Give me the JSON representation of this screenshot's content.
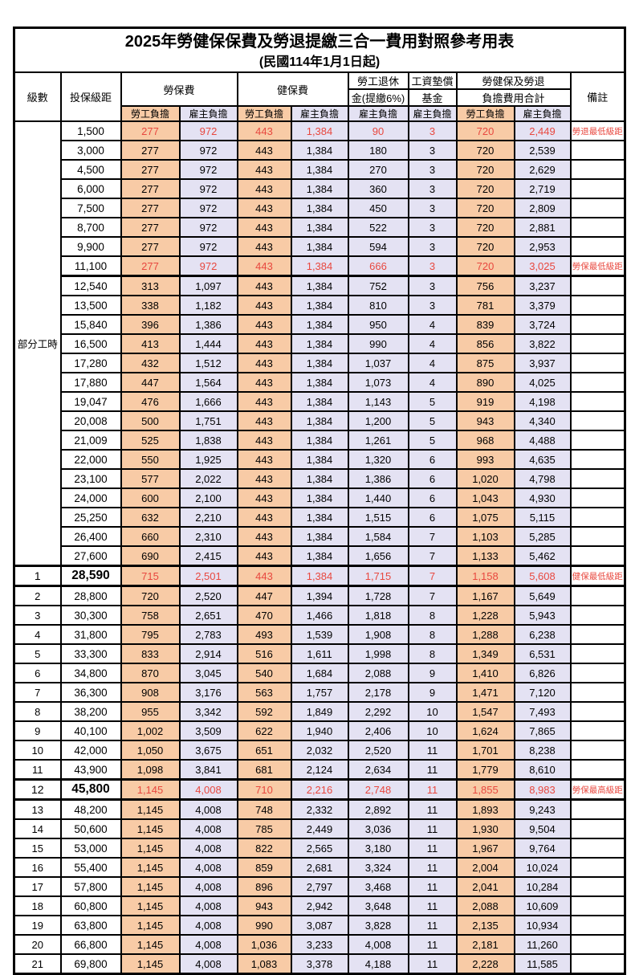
{
  "title": {
    "line1": "2025年勞健保保費及勞退提繳三合一費用對照參考用表",
    "line2": "(民國114年1月1日起)"
  },
  "header": {
    "col_level": "級數",
    "col_bracket": "投保級距",
    "group_labor": "勞保費",
    "group_health": "健保費",
    "group_pension_line1": "勞工退休",
    "group_pension_line2": "金(提繳6%)",
    "group_wage_line1": "工資墊償",
    "group_wage_line2": "基金",
    "group_total_line1": "勞健保及勞退",
    "group_total_line2": "負擔費用合計",
    "col_remark": "備註",
    "sub_employee": "勞工負擔",
    "sub_employer": "雇主負擔"
  },
  "part_time_label": "部分工時",
  "colors": {
    "employee_bg": "#F8CBA6",
    "employer_bg": "#E4E2F3",
    "highlight_red": "#E8483F",
    "border": "#000000"
  },
  "rows": [
    {
      "level": "",
      "bracket": "1,500",
      "labor_emp": "277",
      "labor_er": "972",
      "health_emp": "443",
      "health_er": "1,384",
      "pension_er": "90",
      "wage_er": "3",
      "total_emp": "720",
      "total_er": "2,449",
      "remark": "勞退最低級距",
      "red": true
    },
    {
      "level": "",
      "bracket": "3,000",
      "labor_emp": "277",
      "labor_er": "972",
      "health_emp": "443",
      "health_er": "1,384",
      "pension_er": "180",
      "wage_er": "3",
      "total_emp": "720",
      "total_er": "2,539",
      "remark": ""
    },
    {
      "level": "",
      "bracket": "4,500",
      "labor_emp": "277",
      "labor_er": "972",
      "health_emp": "443",
      "health_er": "1,384",
      "pension_er": "270",
      "wage_er": "3",
      "total_emp": "720",
      "total_er": "2,629",
      "remark": ""
    },
    {
      "level": "",
      "bracket": "6,000",
      "labor_emp": "277",
      "labor_er": "972",
      "health_emp": "443",
      "health_er": "1,384",
      "pension_er": "360",
      "wage_er": "3",
      "total_emp": "720",
      "total_er": "2,719",
      "remark": ""
    },
    {
      "level": "",
      "bracket": "7,500",
      "labor_emp": "277",
      "labor_er": "972",
      "health_emp": "443",
      "health_er": "1,384",
      "pension_er": "450",
      "wage_er": "3",
      "total_emp": "720",
      "total_er": "2,809",
      "remark": ""
    },
    {
      "level": "",
      "bracket": "8,700",
      "labor_emp": "277",
      "labor_er": "972",
      "health_emp": "443",
      "health_er": "1,384",
      "pension_er": "522",
      "wage_er": "3",
      "total_emp": "720",
      "total_er": "2,881",
      "remark": ""
    },
    {
      "level": "",
      "bracket": "9,900",
      "labor_emp": "277",
      "labor_er": "972",
      "health_emp": "443",
      "health_er": "1,384",
      "pension_er": "594",
      "wage_er": "3",
      "total_emp": "720",
      "total_er": "2,953",
      "remark": ""
    },
    {
      "level": "",
      "bracket": "11,100",
      "labor_emp": "277",
      "labor_er": "972",
      "health_emp": "443",
      "health_er": "1,384",
      "pension_er": "666",
      "wage_er": "3",
      "total_emp": "720",
      "total_er": "3,025",
      "remark": "勞保最低級距",
      "red": true,
      "thick_bottom": true
    },
    {
      "level": "",
      "bracket": "12,540",
      "labor_emp": "313",
      "labor_er": "1,097",
      "health_emp": "443",
      "health_er": "1,384",
      "pension_er": "752",
      "wage_er": "3",
      "total_emp": "756",
      "total_er": "3,237",
      "remark": ""
    },
    {
      "level": "",
      "bracket": "13,500",
      "labor_emp": "338",
      "labor_er": "1,182",
      "health_emp": "443",
      "health_er": "1,384",
      "pension_er": "810",
      "wage_er": "3",
      "total_emp": "781",
      "total_er": "3,379",
      "remark": ""
    },
    {
      "level": "",
      "bracket": "15,840",
      "labor_emp": "396",
      "labor_er": "1,386",
      "health_emp": "443",
      "health_er": "1,384",
      "pension_er": "950",
      "wage_er": "4",
      "total_emp": "839",
      "total_er": "3,724",
      "remark": ""
    },
    {
      "level": "",
      "bracket": "16,500",
      "labor_emp": "413",
      "labor_er": "1,444",
      "health_emp": "443",
      "health_er": "1,384",
      "pension_er": "990",
      "wage_er": "4",
      "total_emp": "856",
      "total_er": "3,822",
      "remark": ""
    },
    {
      "level": "",
      "bracket": "17,280",
      "labor_emp": "432",
      "labor_er": "1,512",
      "health_emp": "443",
      "health_er": "1,384",
      "pension_er": "1,037",
      "wage_er": "4",
      "total_emp": "875",
      "total_er": "3,937",
      "remark": ""
    },
    {
      "level": "",
      "bracket": "17,880",
      "labor_emp": "447",
      "labor_er": "1,564",
      "health_emp": "443",
      "health_er": "1,384",
      "pension_er": "1,073",
      "wage_er": "4",
      "total_emp": "890",
      "total_er": "4,025",
      "remark": ""
    },
    {
      "level": "",
      "bracket": "19,047",
      "labor_emp": "476",
      "labor_er": "1,666",
      "health_emp": "443",
      "health_er": "1,384",
      "pension_er": "1,143",
      "wage_er": "5",
      "total_emp": "919",
      "total_er": "4,198",
      "remark": ""
    },
    {
      "level": "",
      "bracket": "20,008",
      "labor_emp": "500",
      "labor_er": "1,751",
      "health_emp": "443",
      "health_er": "1,384",
      "pension_er": "1,200",
      "wage_er": "5",
      "total_emp": "943",
      "total_er": "4,340",
      "remark": ""
    },
    {
      "level": "",
      "bracket": "21,009",
      "labor_emp": "525",
      "labor_er": "1,838",
      "health_emp": "443",
      "health_er": "1,384",
      "pension_er": "1,261",
      "wage_er": "5",
      "total_emp": "968",
      "total_er": "4,488",
      "remark": ""
    },
    {
      "level": "",
      "bracket": "22,000",
      "labor_emp": "550",
      "labor_er": "1,925",
      "health_emp": "443",
      "health_er": "1,384",
      "pension_er": "1,320",
      "wage_er": "6",
      "total_emp": "993",
      "total_er": "4,635",
      "remark": ""
    },
    {
      "level": "",
      "bracket": "23,100",
      "labor_emp": "577",
      "labor_er": "2,022",
      "health_emp": "443",
      "health_er": "1,384",
      "pension_er": "1,386",
      "wage_er": "6",
      "total_emp": "1,020",
      "total_er": "4,798",
      "remark": ""
    },
    {
      "level": "",
      "bracket": "24,000",
      "labor_emp": "600",
      "labor_er": "2,100",
      "health_emp": "443",
      "health_er": "1,384",
      "pension_er": "1,440",
      "wage_er": "6",
      "total_emp": "1,043",
      "total_er": "4,930",
      "remark": ""
    },
    {
      "level": "",
      "bracket": "25,250",
      "labor_emp": "632",
      "labor_er": "2,210",
      "health_emp": "443",
      "health_er": "1,384",
      "pension_er": "1,515",
      "wage_er": "6",
      "total_emp": "1,075",
      "total_er": "5,115",
      "remark": ""
    },
    {
      "level": "",
      "bracket": "26,400",
      "labor_emp": "660",
      "labor_er": "2,310",
      "health_emp": "443",
      "health_er": "1,384",
      "pension_er": "1,584",
      "wage_er": "7",
      "total_emp": "1,103",
      "total_er": "5,285",
      "remark": ""
    },
    {
      "level": "",
      "bracket": "27,600",
      "labor_emp": "690",
      "labor_er": "2,415",
      "health_emp": "443",
      "health_er": "1,384",
      "pension_er": "1,656",
      "wage_er": "7",
      "total_emp": "1,133",
      "total_er": "5,462",
      "remark": ""
    },
    {
      "level": "1",
      "bracket": "28,590",
      "labor_emp": "715",
      "labor_er": "2,501",
      "health_emp": "443",
      "health_er": "1,384",
      "pension_er": "1,715",
      "wage_er": "7",
      "total_emp": "1,158",
      "total_er": "5,608",
      "remark": "健保最低級距",
      "red": true,
      "big": true,
      "thick_top": true,
      "thick_bottom": true
    },
    {
      "level": "2",
      "bracket": "28,800",
      "labor_emp": "720",
      "labor_er": "2,520",
      "health_emp": "447",
      "health_er": "1,394",
      "pension_er": "1,728",
      "wage_er": "7",
      "total_emp": "1,167",
      "total_er": "5,649",
      "remark": ""
    },
    {
      "level": "3",
      "bracket": "30,300",
      "labor_emp": "758",
      "labor_er": "2,651",
      "health_emp": "470",
      "health_er": "1,466",
      "pension_er": "1,818",
      "wage_er": "8",
      "total_emp": "1,228",
      "total_er": "5,943",
      "remark": ""
    },
    {
      "level": "4",
      "bracket": "31,800",
      "labor_emp": "795",
      "labor_er": "2,783",
      "health_emp": "493",
      "health_er": "1,539",
      "pension_er": "1,908",
      "wage_er": "8",
      "total_emp": "1,288",
      "total_er": "6,238",
      "remark": ""
    },
    {
      "level": "5",
      "bracket": "33,300",
      "labor_emp": "833",
      "labor_er": "2,914",
      "health_emp": "516",
      "health_er": "1,611",
      "pension_er": "1,998",
      "wage_er": "8",
      "total_emp": "1,349",
      "total_er": "6,531",
      "remark": ""
    },
    {
      "level": "6",
      "bracket": "34,800",
      "labor_emp": "870",
      "labor_er": "3,045",
      "health_emp": "540",
      "health_er": "1,684",
      "pension_er": "2,088",
      "wage_er": "9",
      "total_emp": "1,410",
      "total_er": "6,826",
      "remark": ""
    },
    {
      "level": "7",
      "bracket": "36,300",
      "labor_emp": "908",
      "labor_er": "3,176",
      "health_emp": "563",
      "health_er": "1,757",
      "pension_er": "2,178",
      "wage_er": "9",
      "total_emp": "1,471",
      "total_er": "7,120",
      "remark": ""
    },
    {
      "level": "8",
      "bracket": "38,200",
      "labor_emp": "955",
      "labor_er": "3,342",
      "health_emp": "592",
      "health_er": "1,849",
      "pension_er": "2,292",
      "wage_er": "10",
      "total_emp": "1,547",
      "total_er": "7,493",
      "remark": ""
    },
    {
      "level": "9",
      "bracket": "40,100",
      "labor_emp": "1,002",
      "labor_er": "3,509",
      "health_emp": "622",
      "health_er": "1,940",
      "pension_er": "2,406",
      "wage_er": "10",
      "total_emp": "1,624",
      "total_er": "7,865",
      "remark": ""
    },
    {
      "level": "10",
      "bracket": "42,000",
      "labor_emp": "1,050",
      "labor_er": "3,675",
      "health_emp": "651",
      "health_er": "2,032",
      "pension_er": "2,520",
      "wage_er": "11",
      "total_emp": "1,701",
      "total_er": "8,238",
      "remark": ""
    },
    {
      "level": "11",
      "bracket": "43,900",
      "labor_emp": "1,098",
      "labor_er": "3,841",
      "health_emp": "681",
      "health_er": "2,124",
      "pension_er": "2,634",
      "wage_er": "11",
      "total_emp": "1,779",
      "total_er": "8,610",
      "remark": ""
    },
    {
      "level": "12",
      "bracket": "45,800",
      "labor_emp": "1,145",
      "labor_er": "4,008",
      "health_emp": "710",
      "health_er": "2,216",
      "pension_er": "2,748",
      "wage_er": "11",
      "total_emp": "1,855",
      "total_er": "8,983",
      "remark": "勞保最高級距",
      "red": true,
      "big": true,
      "thick_top": true,
      "thick_bottom": true
    },
    {
      "level": "13",
      "bracket": "48,200",
      "labor_emp": "1,145",
      "labor_er": "4,008",
      "health_emp": "748",
      "health_er": "2,332",
      "pension_er": "2,892",
      "wage_er": "11",
      "total_emp": "1,893",
      "total_er": "9,243",
      "remark": ""
    },
    {
      "level": "14",
      "bracket": "50,600",
      "labor_emp": "1,145",
      "labor_er": "4,008",
      "health_emp": "785",
      "health_er": "2,449",
      "pension_er": "3,036",
      "wage_er": "11",
      "total_emp": "1,930",
      "total_er": "9,504",
      "remark": ""
    },
    {
      "level": "15",
      "bracket": "53,000",
      "labor_emp": "1,145",
      "labor_er": "4,008",
      "health_emp": "822",
      "health_er": "2,565",
      "pension_er": "3,180",
      "wage_er": "11",
      "total_emp": "1,967",
      "total_er": "9,764",
      "remark": ""
    },
    {
      "level": "16",
      "bracket": "55,400",
      "labor_emp": "1,145",
      "labor_er": "4,008",
      "health_emp": "859",
      "health_er": "2,681",
      "pension_er": "3,324",
      "wage_er": "11",
      "total_emp": "2,004",
      "total_er": "10,024",
      "remark": ""
    },
    {
      "level": "17",
      "bracket": "57,800",
      "labor_emp": "1,145",
      "labor_er": "4,008",
      "health_emp": "896",
      "health_er": "2,797",
      "pension_er": "3,468",
      "wage_er": "11",
      "total_emp": "2,041",
      "total_er": "10,284",
      "remark": ""
    },
    {
      "level": "18",
      "bracket": "60,800",
      "labor_emp": "1,145",
      "labor_er": "4,008",
      "health_emp": "943",
      "health_er": "2,942",
      "pension_er": "3,648",
      "wage_er": "11",
      "total_emp": "2,088",
      "total_er": "10,609",
      "remark": ""
    },
    {
      "level": "19",
      "bracket": "63,800",
      "labor_emp": "1,145",
      "labor_er": "4,008",
      "health_emp": "990",
      "health_er": "3,087",
      "pension_er": "3,828",
      "wage_er": "11",
      "total_emp": "2,135",
      "total_er": "10,934",
      "remark": ""
    },
    {
      "level": "20",
      "bracket": "66,800",
      "labor_emp": "1,145",
      "labor_er": "4,008",
      "health_emp": "1,036",
      "health_er": "3,233",
      "pension_er": "4,008",
      "wage_er": "11",
      "total_emp": "2,181",
      "total_er": "11,260",
      "remark": ""
    },
    {
      "level": "21",
      "bracket": "69,800",
      "labor_emp": "1,145",
      "labor_er": "4,008",
      "health_emp": "1,083",
      "health_er": "3,378",
      "pension_er": "4,188",
      "wage_er": "11",
      "total_emp": "2,228",
      "total_er": "11,585",
      "remark": ""
    }
  ]
}
